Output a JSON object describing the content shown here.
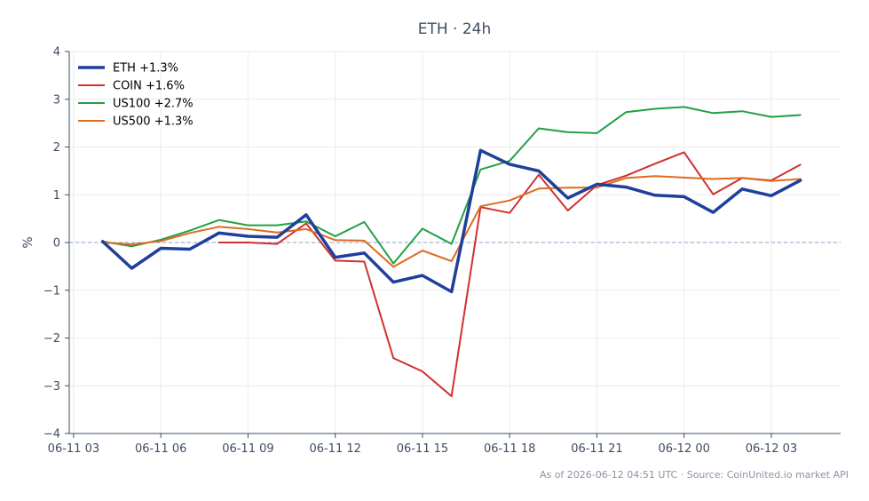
{
  "chart_data": {
    "type": "line",
    "title": "ETH · 24h",
    "xlabel": "",
    "ylabel": "%",
    "ylim": [
      -4,
      4
    ],
    "yticks": [
      -4,
      -3,
      -2,
      -1,
      0,
      1,
      2,
      3,
      4
    ],
    "ytick_labels": [
      "−4",
      "−3",
      "−2",
      "−1",
      "0",
      "1",
      "2",
      "3",
      "4"
    ],
    "xticks": [
      {
        "t": "2026-06-11 03:00",
        "label": "06-11 03"
      },
      {
        "t": "2026-06-11 06:00",
        "label": "06-11 06"
      },
      {
        "t": "2026-06-11 09:00",
        "label": "06-11 09"
      },
      {
        "t": "2026-06-11 12:00",
        "label": "06-11 12"
      },
      {
        "t": "2026-06-11 15:00",
        "label": "06-11 15"
      },
      {
        "t": "2026-06-11 18:00",
        "label": "06-11 18"
      },
      {
        "t": "2026-06-11 21:00",
        "label": "06-11 21"
      },
      {
        "t": "2026-06-12 00:00",
        "label": "06-12 00"
      },
      {
        "t": "2026-06-12 03:00",
        "label": "06-12 03"
      }
    ],
    "x": [
      "2026-06-11 04:00",
      "2026-06-11 05:00",
      "2026-06-11 06:00",
      "2026-06-11 07:00",
      "2026-06-11 08:00",
      "2026-06-11 09:00",
      "2026-06-11 10:00",
      "2026-06-11 11:00",
      "2026-06-11 12:00",
      "2026-06-11 13:00",
      "2026-06-11 14:00",
      "2026-06-11 15:00",
      "2026-06-11 16:00",
      "2026-06-11 17:00",
      "2026-06-11 18:00",
      "2026-06-11 19:00",
      "2026-06-11 20:00",
      "2026-06-11 21:00",
      "2026-06-11 22:00",
      "2026-06-11 23:00",
      "2026-06-12 00:00",
      "2026-06-12 01:00",
      "2026-06-12 02:00",
      "2026-06-12 03:00",
      "2026-06-12 04:00"
    ],
    "grid": true,
    "zero_line": true,
    "legend": "top-left",
    "series": [
      {
        "name": "ETH +1.3%",
        "color": "#1f3f9a",
        "values": [
          0.02,
          -0.54,
          -0.12,
          -0.14,
          0.2,
          0.13,
          0.11,
          0.58,
          -0.31,
          -0.22,
          -0.83,
          -0.69,
          -1.03,
          1.93,
          1.64,
          1.5,
          0.93,
          1.22,
          1.16,
          0.99,
          0.96,
          0.63,
          1.12,
          0.98,
          1.3
        ]
      },
      {
        "name": "COIN +1.6%",
        "color": "#d03030",
        "values": [
          null,
          null,
          null,
          null,
          0.0,
          0.0,
          -0.03,
          0.4,
          -0.38,
          -0.4,
          -2.42,
          -2.7,
          -3.22,
          0.74,
          0.62,
          1.42,
          0.67,
          1.2,
          1.4,
          1.65,
          1.89,
          1.01,
          1.35,
          1.3,
          1.63
        ]
      },
      {
        "name": "US100 +2.7%",
        "color": "#22a045",
        "values": [
          0.02,
          -0.08,
          0.06,
          0.25,
          0.47,
          0.36,
          0.36,
          0.44,
          0.13,
          0.43,
          -0.44,
          0.29,
          -0.03,
          1.53,
          1.71,
          2.39,
          2.31,
          2.29,
          2.73,
          2.8,
          2.84,
          2.71,
          2.75,
          2.63,
          2.67
        ]
      },
      {
        "name": "US500 +1.3%",
        "color": "#e06a1e",
        "values": [
          0.0,
          -0.04,
          0.03,
          0.2,
          0.33,
          0.28,
          0.21,
          0.28,
          0.05,
          0.04,
          -0.51,
          -0.17,
          -0.39,
          0.76,
          0.88,
          1.13,
          1.15,
          1.15,
          1.35,
          1.39,
          1.36,
          1.33,
          1.35,
          1.29,
          1.33
        ]
      }
    ],
    "footnote": "As of 2026-06-12 04:51 UTC · Source: CoinUnited.io market API"
  }
}
